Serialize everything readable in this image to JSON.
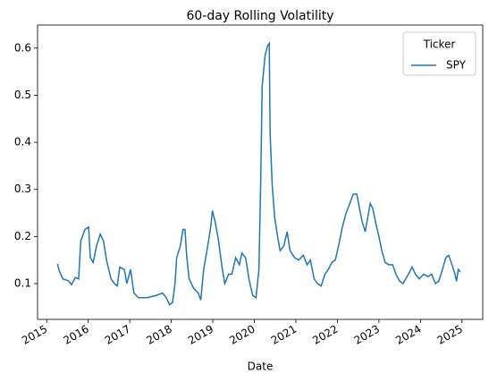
{
  "chart_data": {
    "type": "line",
    "title": "60-day Rolling Volatility",
    "xlabel": "Date",
    "legend_title": "Ticker",
    "legend_loc": "upper right",
    "grid": false,
    "xlim": [
      2014.78,
      2025.5
    ],
    "xticks": [
      2015,
      2016,
      2017,
      2018,
      2019,
      2020,
      2021,
      2022,
      2023,
      2024,
      2025
    ],
    "ylim": [
      0.024,
      0.649
    ],
    "yticks": [
      0.1,
      0.2,
      0.3,
      0.4,
      0.5,
      0.6
    ],
    "x": [
      2015.26,
      2015.3,
      2015.39,
      2015.52,
      2015.6,
      2015.69,
      2015.77,
      2015.82,
      2015.92,
      2016.01,
      2016.05,
      2016.12,
      2016.2,
      2016.29,
      2016.37,
      2016.44,
      2016.55,
      2016.63,
      2016.7,
      2016.76,
      2016.87,
      2016.93,
      2017.02,
      2017.1,
      2017.21,
      2017.42,
      2017.64,
      2017.79,
      2017.88,
      2017.96,
      2018.03,
      2018.09,
      2018.13,
      2018.22,
      2018.28,
      2018.33,
      2018.37,
      2018.43,
      2018.54,
      2018.65,
      2018.71,
      2018.78,
      2018.86,
      2018.95,
      2018.99,
      2019.06,
      2019.14,
      2019.23,
      2019.29,
      2019.38,
      2019.46,
      2019.55,
      2019.64,
      2019.7,
      2019.79,
      2019.87,
      2019.96,
      2020.04,
      2020.11,
      2020.15,
      2020.19,
      2020.26,
      2020.32,
      2020.36,
      2020.38,
      2020.43,
      2020.49,
      2020.56,
      2020.62,
      2020.71,
      2020.79,
      2020.86,
      2020.97,
      2021.07,
      2021.18,
      2021.27,
      2021.35,
      2021.44,
      2021.52,
      2021.61,
      2021.7,
      2021.78,
      2021.87,
      2021.95,
      2022.04,
      2022.12,
      2022.21,
      2022.3,
      2022.38,
      2022.47,
      2022.53,
      2022.6,
      2022.67,
      2022.73,
      2022.79,
      2022.85,
      2022.92,
      2023.0,
      2023.07,
      2023.15,
      2023.24,
      2023.33,
      2023.41,
      2023.5,
      2023.58,
      2023.71,
      2023.8,
      2023.88,
      2023.97,
      2024.08,
      2024.18,
      2024.27,
      2024.36,
      2024.44,
      2024.53,
      2024.61,
      2024.68,
      2024.76,
      2024.83,
      2024.87,
      2024.91,
      2024.96
    ],
    "series": [
      {
        "name": "SPY",
        "color": "#1f77b4",
        "values": [
          0.142,
          0.128,
          0.11,
          0.106,
          0.098,
          0.113,
          0.11,
          0.19,
          0.215,
          0.22,
          0.155,
          0.145,
          0.18,
          0.205,
          0.19,
          0.15,
          0.11,
          0.1,
          0.095,
          0.135,
          0.13,
          0.1,
          0.13,
          0.08,
          0.07,
          0.07,
          0.075,
          0.08,
          0.07,
          0.055,
          0.06,
          0.1,
          0.155,
          0.18,
          0.215,
          0.215,
          0.16,
          0.11,
          0.09,
          0.08,
          0.065,
          0.13,
          0.17,
          0.22,
          0.255,
          0.23,
          0.19,
          0.13,
          0.1,
          0.12,
          0.12,
          0.155,
          0.14,
          0.165,
          0.155,
          0.11,
          0.075,
          0.07,
          0.13,
          0.3,
          0.52,
          0.585,
          0.605,
          0.61,
          0.42,
          0.31,
          0.24,
          0.2,
          0.17,
          0.18,
          0.21,
          0.17,
          0.155,
          0.15,
          0.16,
          0.14,
          0.15,
          0.11,
          0.1,
          0.095,
          0.12,
          0.13,
          0.145,
          0.15,
          0.185,
          0.22,
          0.25,
          0.27,
          0.29,
          0.29,
          0.26,
          0.23,
          0.21,
          0.24,
          0.27,
          0.26,
          0.23,
          0.2,
          0.17,
          0.145,
          0.14,
          0.14,
          0.12,
          0.105,
          0.1,
          0.12,
          0.135,
          0.12,
          0.11,
          0.12,
          0.115,
          0.12,
          0.1,
          0.105,
          0.13,
          0.155,
          0.16,
          0.14,
          0.12,
          0.105,
          0.13,
          0.125
        ]
      }
    ]
  }
}
